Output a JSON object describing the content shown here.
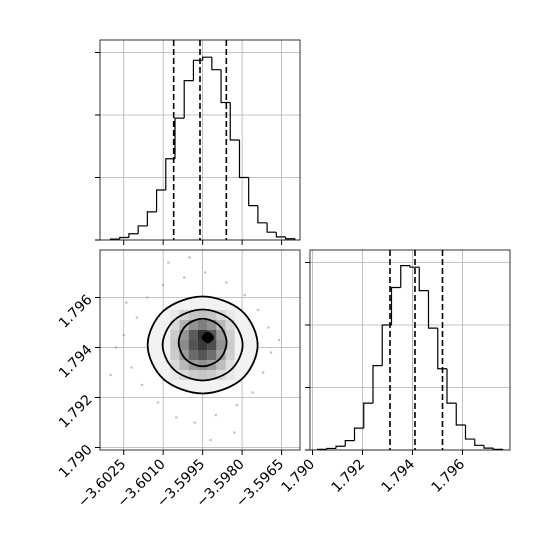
{
  "chart_data": [
    {
      "type": "histogram",
      "color": "#000000",
      "grid": true,
      "xticklabels": false,
      "yticklabels": false,
      "bins": [
        -3.603,
        -3.60265,
        -3.6023,
        -3.60195,
        -3.6016,
        -3.60125,
        -3.6009,
        -3.60055,
        -3.6002,
        -3.59985,
        -3.5995,
        -3.59915,
        -3.5988,
        -3.59845,
        -3.5981,
        -3.59775,
        -3.5974,
        -3.59705,
        -3.5967,
        -3.59635,
        -3.596
      ],
      "counts": [
        3,
        8,
        20,
        45,
        90,
        160,
        260,
        390,
        510,
        575,
        585,
        545,
        440,
        320,
        200,
        110,
        55,
        25,
        10,
        4
      ],
      "quantiles": [
        -3.6006,
        -3.5996,
        -3.5986
      ],
      "xlim": [
        -3.6034,
        -3.5958
      ],
      "ylim": [
        0,
        640
      ],
      "xticks": [
        -3.6025,
        -3.601,
        -3.5995,
        -3.598,
        -3.5965
      ],
      "yticks": [
        0,
        200,
        400,
        600
      ]
    },
    {
      "type": "corner-2d",
      "color": "#000000",
      "point_color": "#9a9a9a",
      "grid": true,
      "xticklabels": true,
      "yticklabels": true,
      "xlim": [
        -3.6034,
        -3.5958
      ],
      "ylim": [
        1.7899,
        1.7979
      ],
      "xticks": [
        {
          "value": -3.6025,
          "label": "−3.6025"
        },
        {
          "value": -3.601,
          "label": "−3.6010"
        },
        {
          "value": -3.5995,
          "label": "−3.5995"
        },
        {
          "value": -3.598,
          "label": "−3.5980"
        },
        {
          "value": -3.5965,
          "label": "−3.5965"
        }
      ],
      "yticks": [
        {
          "value": 1.79,
          "label": "1.790"
        },
        1.792,
        1.794,
        1.796
      ],
      "points": {
        "x": [
          -3.6025,
          -3.6022,
          -3.602,
          -3.6018,
          -3.6016,
          -3.6012,
          -3.601,
          -3.6005,
          -3.6002,
          -3.5998,
          -3.5994,
          -3.599,
          -3.5986,
          -3.5982,
          -3.5979,
          -3.5976,
          -3.5974,
          -3.5972,
          -3.597,
          -3.5969,
          -3.6028,
          -3.6024,
          -3.5983,
          -3.6008,
          -3.5966,
          -3.603,
          -3.5992,
          -3.6
        ],
        "y": [
          1.7945,
          1.7932,
          1.7952,
          1.7925,
          1.796,
          1.7918,
          1.7965,
          1.7912,
          1.7968,
          1.791,
          1.797,
          1.7913,
          1.7966,
          1.7917,
          1.7961,
          1.7922,
          1.7955,
          1.793,
          1.7948,
          1.7938,
          1.794,
          1.7958,
          1.7906,
          1.7974,
          1.7943,
          1.7929,
          1.7903,
          1.7976
        ]
      },
      "hist2d": {
        "xbins": [
          -3.60073,
          -3.60038,
          -3.60003,
          -3.59968,
          -3.59933,
          -3.59898,
          -3.59863,
          -3.59828
        ],
        "ybins": [
          1.7927,
          1.7931,
          1.7935,
          1.7939,
          1.7943,
          1.7947,
          1.7951,
          1.7955
        ],
        "counts": [
          [
            2,
            5,
            8,
            9,
            8,
            5,
            2
          ],
          [
            5,
            12,
            18,
            20,
            17,
            11,
            4
          ],
          [
            8,
            18,
            28,
            32,
            27,
            17,
            7
          ],
          [
            9,
            21,
            33,
            38,
            34,
            20,
            8
          ],
          [
            8,
            19,
            31,
            40,
            32,
            18,
            7
          ],
          [
            5,
            13,
            20,
            24,
            20,
            12,
            5
          ],
          [
            2,
            6,
            9,
            10,
            9,
            5,
            2
          ]
        ]
      },
      "contours": [
        {
          "x": [
            -3.59741,
            -3.59802,
            -3.5995,
            -3.60098,
            -3.60159,
            -3.60098,
            -3.5995,
            -3.59802
          ],
          "y": [
            1.7941,
            1.79547,
            1.79604,
            1.79547,
            1.7941,
            1.79273,
            1.79216,
            1.79273
          ]
        },
        {
          "x": [
            -3.59798,
            -3.59843,
            -3.5995,
            -3.60057,
            -3.60102,
            -3.60057,
            -3.5995,
            -3.59843
          ],
          "y": [
            1.7941,
            1.7951,
            1.79552,
            1.7951,
            1.7941,
            1.7931,
            1.79268,
            1.7931
          ]
        },
        {
          "x": [
            -3.59859,
            -3.59886,
            -3.5995,
            -3.60014,
            -3.60041,
            -3.60014,
            -3.5995,
            -3.59886
          ],
          "y": [
            1.7942,
            1.79487,
            1.79515,
            1.79487,
            1.7942,
            1.79353,
            1.79325,
            1.79353
          ]
        },
        {
          "x": [
            -3.5991,
            -3.5993,
            -3.5995,
            -3.5993
          ],
          "y": [
            1.7944,
            1.7946,
            1.7944,
            1.7942
          ]
        }
      ]
    },
    {
      "type": "histogram",
      "color": "#000000",
      "grid": true,
      "xticklabels": true,
      "yticklabels": false,
      "bins": [
        1.7902,
        1.79057,
        1.79094,
        1.79131,
        1.79168,
        1.79205,
        1.79242,
        1.79279,
        1.79316,
        1.79353,
        1.7939,
        1.79427,
        1.79464,
        1.79501,
        1.79538,
        1.79575,
        1.79612,
        1.79649,
        1.79686,
        1.79723,
        1.7976
      ],
      "counts": [
        2,
        5,
        12,
        30,
        70,
        150,
        270,
        400,
        520,
        590,
        585,
        510,
        390,
        260,
        150,
        80,
        35,
        15,
        6,
        2
      ],
      "quantiles": [
        1.7931,
        1.7941,
        1.7952
      ],
      "xlim": [
        1.7899,
        1.7979
      ],
      "ylim": [
        0,
        640
      ],
      "xticks": [
        {
          "value": 1.79,
          "label": "1.790"
        },
        1.792,
        1.794,
        1.796
      ],
      "yticks": [
        0,
        200,
        400,
        600
      ]
    }
  ]
}
